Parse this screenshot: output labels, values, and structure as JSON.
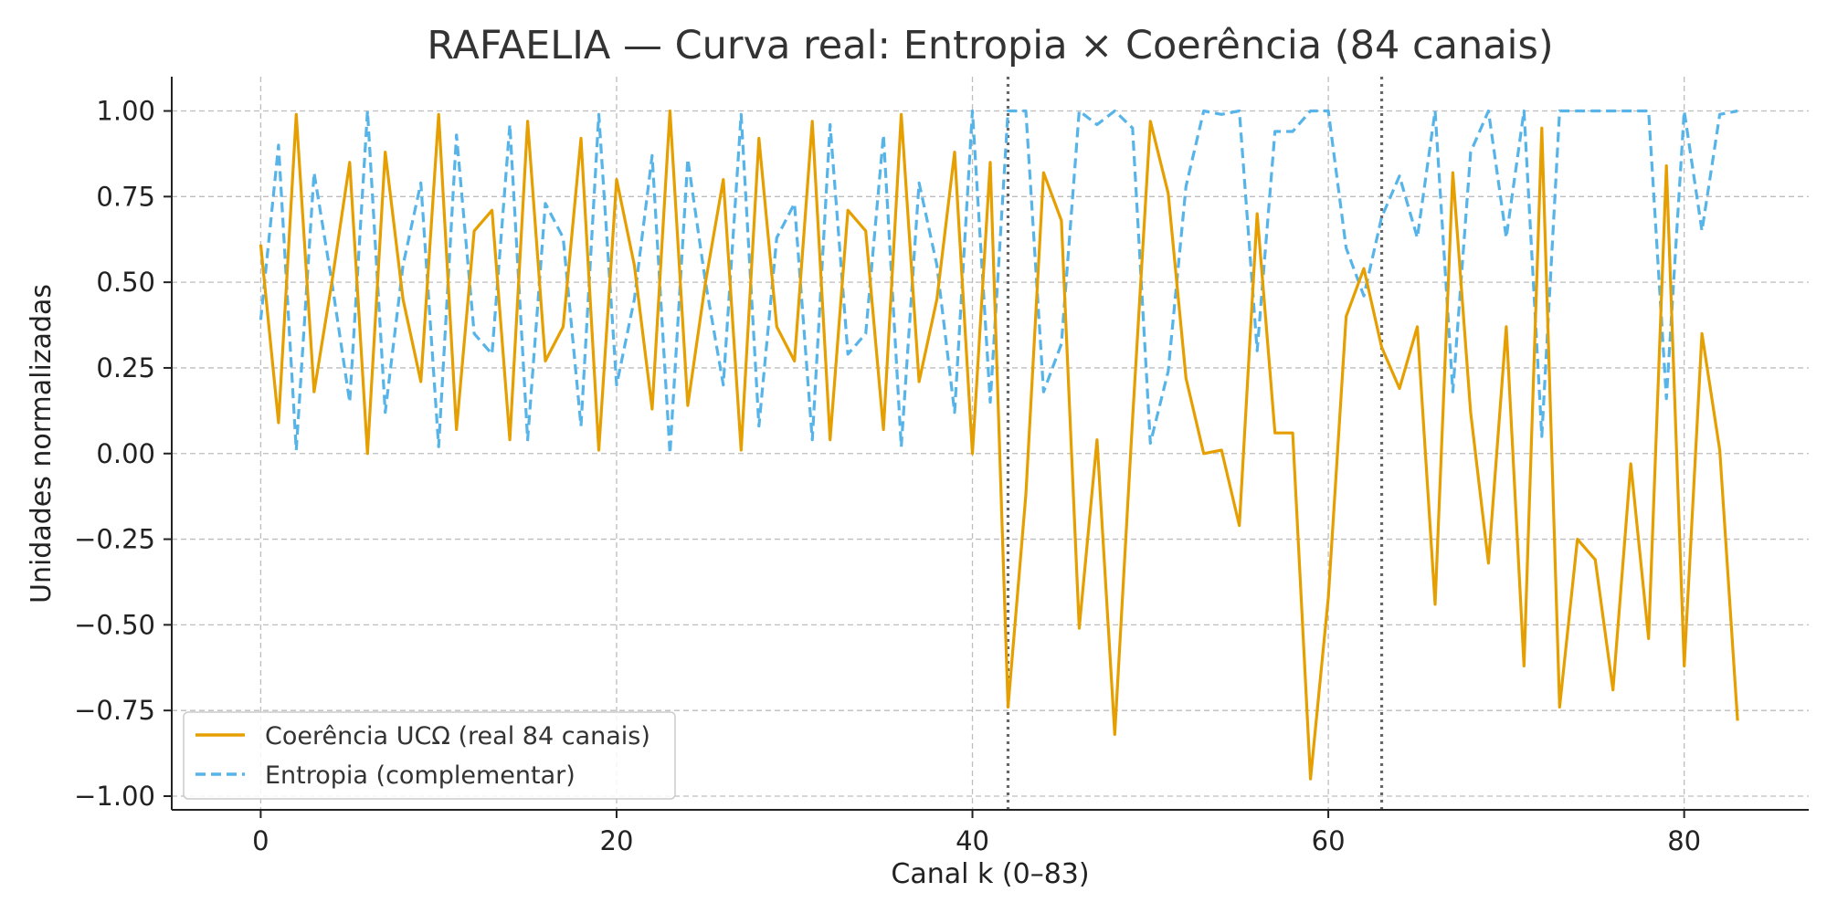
{
  "chart_data": {
    "type": "line",
    "title": "RAFAELIA — Curva real: Entropia × Coerência (84 canais)",
    "xlabel": "Canal k (0–83)",
    "ylabel": "Unidades normalizadas",
    "xlim": [
      -5,
      87
    ],
    "ylim": [
      -1.04,
      1.1
    ],
    "xticks": [
      0,
      20,
      40,
      60,
      80
    ],
    "yticks": [
      -1.0,
      -0.75,
      -0.5,
      -0.25,
      0.0,
      0.25,
      0.5,
      0.75,
      1.0
    ],
    "ytick_labels": [
      "−1.00",
      "−0.75",
      "−0.50",
      "−0.25",
      "0.00",
      "0.25",
      "0.50",
      "0.75",
      "1.00"
    ],
    "xtick_labels": [
      "0",
      "20",
      "40",
      "60",
      "80"
    ],
    "grid": true,
    "legend_position": "lower-left",
    "vlines": [
      42,
      63
    ],
    "x": [
      0,
      1,
      2,
      3,
      4,
      5,
      6,
      7,
      8,
      9,
      10,
      11,
      12,
      13,
      14,
      15,
      16,
      17,
      18,
      19,
      20,
      21,
      22,
      23,
      24,
      25,
      26,
      27,
      28,
      29,
      30,
      31,
      32,
      33,
      34,
      35,
      36,
      37,
      38,
      39,
      40,
      41,
      42,
      43,
      44,
      45,
      46,
      47,
      48,
      49,
      50,
      51,
      52,
      53,
      54,
      55,
      56,
      57,
      58,
      59,
      60,
      61,
      62,
      63,
      64,
      65,
      66,
      67,
      68,
      69,
      70,
      71,
      72,
      73,
      74,
      75,
      76,
      77,
      78,
      79,
      80,
      81,
      82,
      83
    ],
    "series": [
      {
        "name": "Coerência UCΩ (real 84 canais)",
        "color": "#E69F00",
        "style": "solid",
        "values": [
          0.61,
          0.09,
          0.99,
          0.18,
          0.5,
          0.85,
          0.0,
          0.88,
          0.45,
          0.21,
          0.99,
          0.07,
          0.65,
          0.71,
          0.04,
          0.97,
          0.27,
          0.37,
          0.92,
          0.01,
          0.8,
          0.55,
          0.13,
          1.0,
          0.14,
          0.5,
          0.8,
          0.01,
          0.92,
          0.37,
          0.27,
          0.97,
          0.04,
          0.71,
          0.65,
          0.07,
          0.99,
          0.21,
          0.45,
          0.88,
          0.0,
          0.85,
          -0.74,
          -0.12,
          0.82,
          0.68,
          -0.51,
          0.04,
          -0.82,
          0.1,
          0.97,
          0.76,
          0.22,
          0.0,
          0.01,
          -0.21,
          0.7,
          0.06,
          0.06,
          -0.95,
          -0.42,
          0.4,
          0.54,
          0.31,
          0.19,
          0.37,
          -0.44,
          0.82,
          0.12,
          -0.32,
          0.37,
          -0.62,
          0.95,
          -0.74,
          -0.25,
          -0.31,
          -0.69,
          -0.03,
          -0.54,
          0.84,
          -0.62,
          0.35,
          0.01,
          -0.78
        ]
      },
      {
        "name": "Entropia (complementar)",
        "color": "#56B4E9",
        "style": "dashed",
        "values": [
          0.39,
          0.9,
          0.01,
          0.82,
          0.5,
          0.15,
          1.0,
          0.12,
          0.55,
          0.79,
          0.02,
          0.93,
          0.35,
          0.29,
          0.96,
          0.04,
          0.73,
          0.63,
          0.08,
          0.99,
          0.2,
          0.45,
          0.87,
          0.0,
          0.86,
          0.5,
          0.2,
          0.99,
          0.08,
          0.63,
          0.73,
          0.04,
          0.96,
          0.29,
          0.35,
          0.93,
          0.02,
          0.79,
          0.55,
          0.12,
          1.0,
          0.15,
          1.0,
          1.0,
          0.18,
          0.32,
          1.0,
          0.96,
          1.0,
          0.95,
          0.03,
          0.24,
          0.78,
          1.0,
          0.99,
          1.0,
          0.3,
          0.94,
          0.94,
          1.0,
          1.0,
          0.6,
          0.46,
          0.69,
          0.81,
          0.63,
          1.0,
          0.18,
          0.88,
          1.0,
          0.63,
          1.0,
          0.05,
          1.0,
          1.0,
          1.0,
          1.0,
          1.0,
          1.0,
          0.16,
          1.0,
          0.65,
          0.99,
          1.0
        ]
      }
    ]
  }
}
